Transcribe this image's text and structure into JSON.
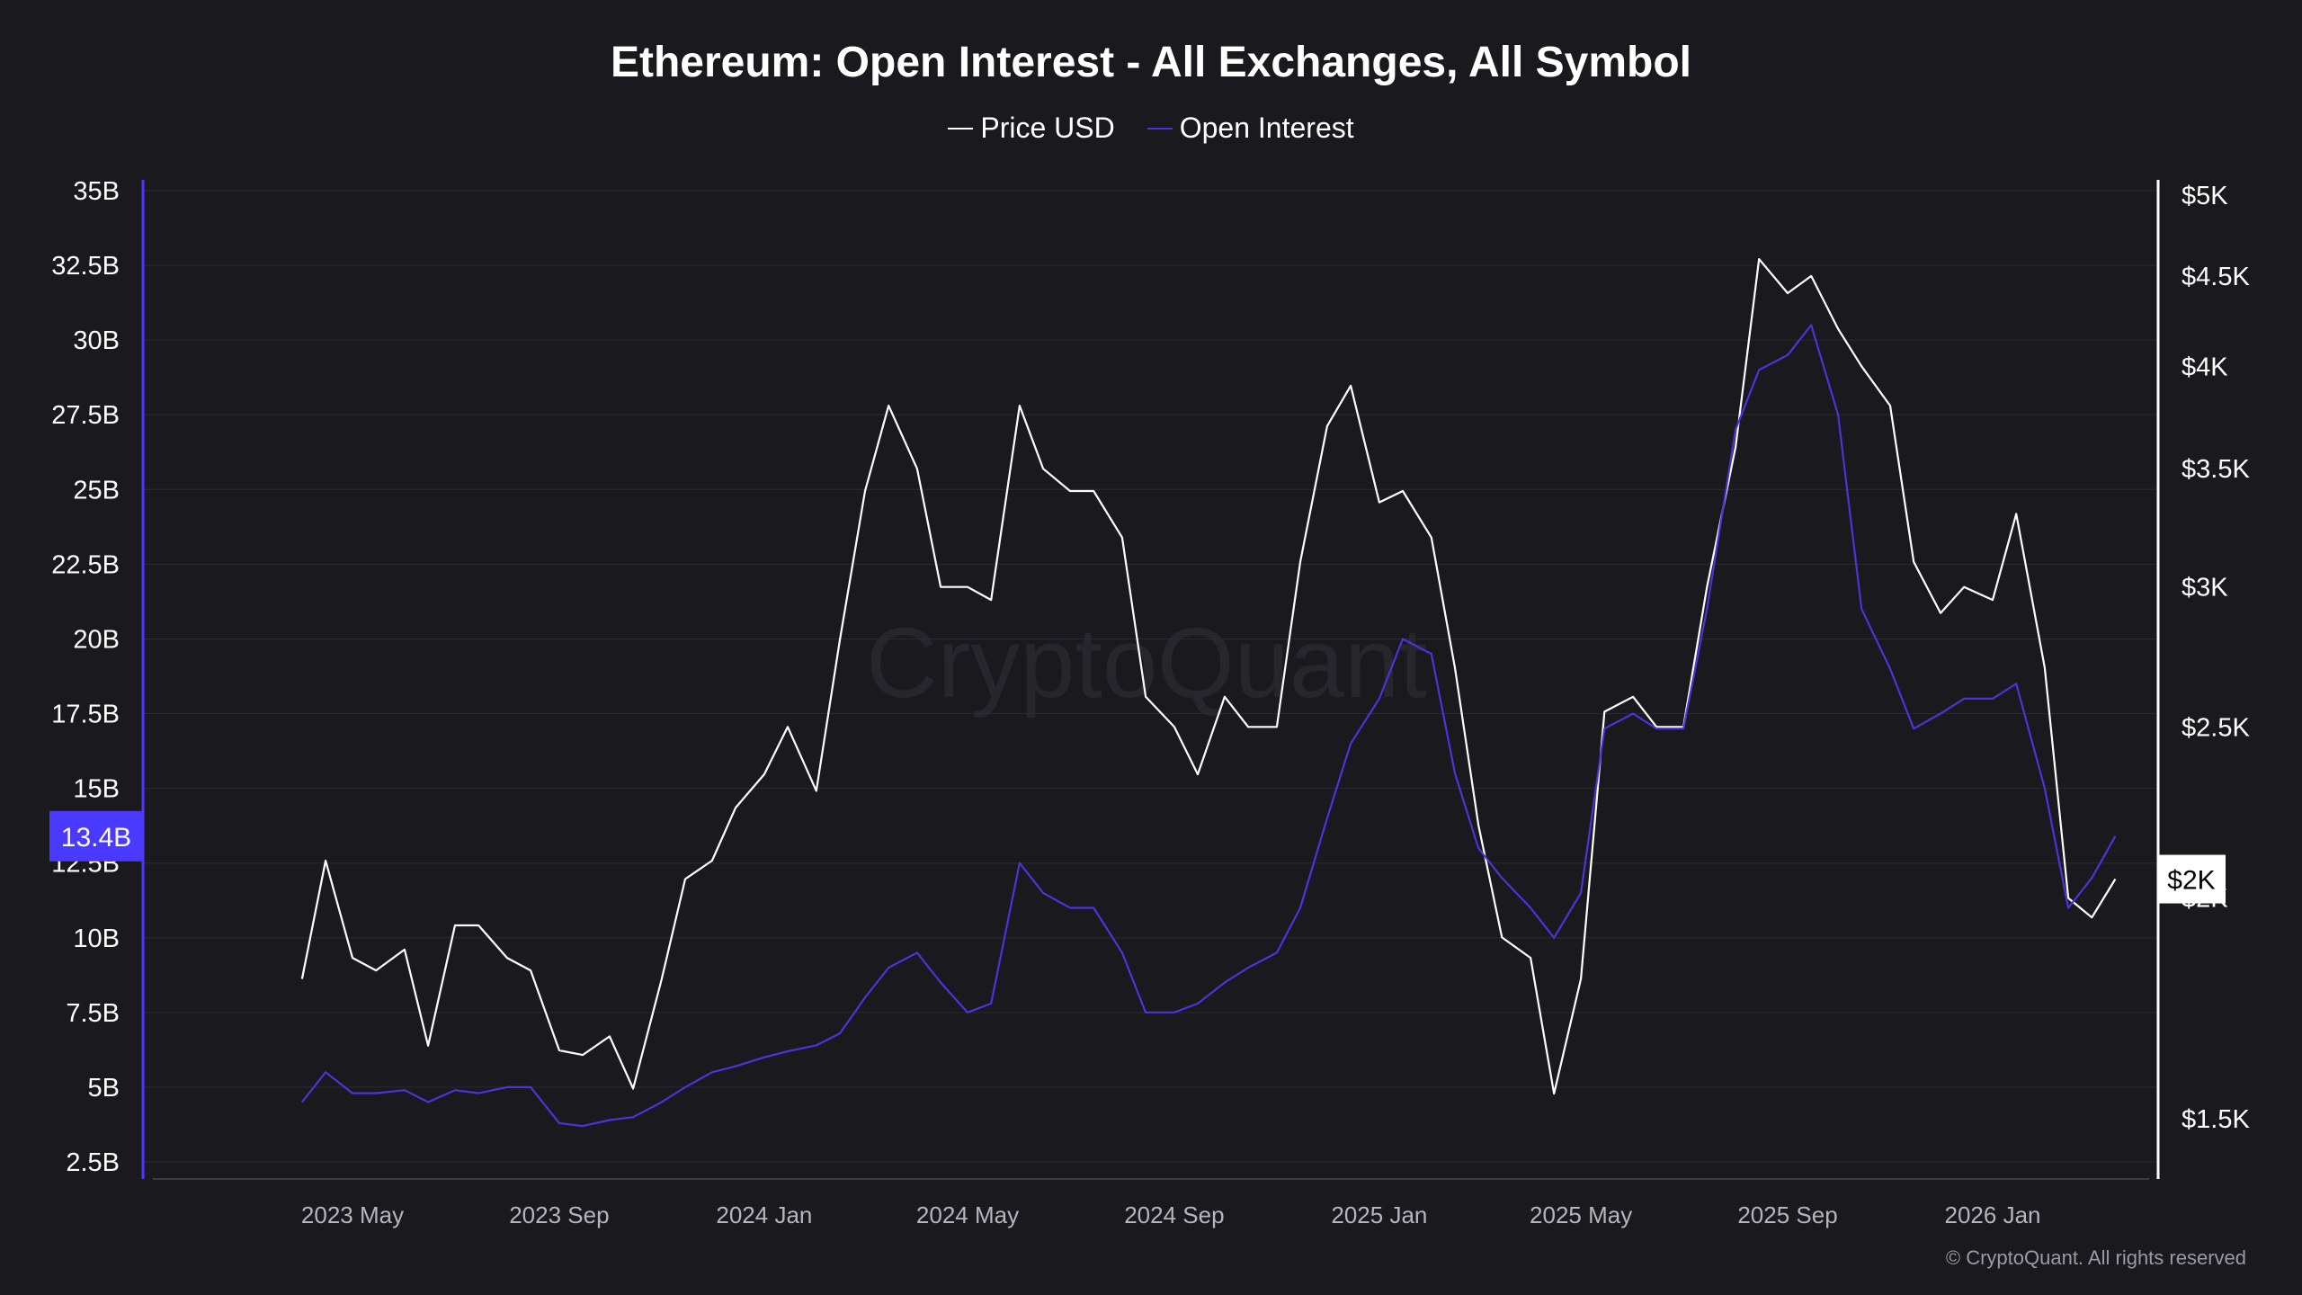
{
  "chart_data": {
    "type": "line",
    "title": "Ethereum: Open Interest - All Exchanges, All Symbol",
    "watermark": "CryptoQuant",
    "footer": "© CryptoQuant. All rights reserved",
    "legend_position": "top",
    "grid": true,
    "x_ticks": [
      {
        "date": "2023-05-01",
        "label": "2023 May"
      },
      {
        "date": "2023-09-01",
        "label": "2023 Sep"
      },
      {
        "date": "2024-01-01",
        "label": "2024 Jan"
      },
      {
        "date": "2024-05-01",
        "label": "2024 May"
      },
      {
        "date": "2024-09-01",
        "label": "2024 Sep"
      },
      {
        "date": "2025-01-01",
        "label": "2025 Jan"
      },
      {
        "date": "2025-05-01",
        "label": "2025 May"
      },
      {
        "date": "2025-09-01",
        "label": "2025 Sep"
      },
      {
        "date": "2026-01-01",
        "label": "2026 Jan"
      }
    ],
    "left_axis": {
      "ylim": [
        2.5,
        35
      ],
      "unit": "B",
      "ticks": [
        {
          "v": 35,
          "label": "35B"
        },
        {
          "v": 32.5,
          "label": "32.5B"
        },
        {
          "v": 30,
          "label": "30B"
        },
        {
          "v": 27.5,
          "label": "27.5B"
        },
        {
          "v": 25,
          "label": "25B"
        },
        {
          "v": 22.5,
          "label": "22.5B"
        },
        {
          "v": 20,
          "label": "20B"
        },
        {
          "v": 17.5,
          "label": "17.5B"
        },
        {
          "v": 15,
          "label": "15B"
        },
        {
          "v": 12.5,
          "label": "12.5B"
        },
        {
          "v": 10,
          "label": "10B"
        },
        {
          "v": 7.5,
          "label": "7.5B"
        },
        {
          "v": 5,
          "label": "5B"
        },
        {
          "v": 2.5,
          "label": "2.5B"
        }
      ],
      "current_label": "13.4B",
      "current_value": 13.4,
      "color": "#4a3aff"
    },
    "right_axis": {
      "scale": "log",
      "ylim": [
        1500,
        5000
      ],
      "ticks": [
        {
          "v": 5000,
          "label": "$5K"
        },
        {
          "v": 4500,
          "label": "$4.5K"
        },
        {
          "v": 4000,
          "label": "$4K"
        },
        {
          "v": 3500,
          "label": "$3.5K"
        },
        {
          "v": 3000,
          "label": "$3K"
        },
        {
          "v": 2500,
          "label": "$2.5K"
        },
        {
          "v": 2000,
          "label": "$2K"
        },
        {
          "v": 1500,
          "label": "$1.5K"
        }
      ],
      "current_label": "$2K",
      "current_value": 2050,
      "color": "#ffffff"
    },
    "x": [
      "2023-04-01",
      "2023-04-15",
      "2023-05-01",
      "2023-05-15",
      "2023-06-01",
      "2023-06-15",
      "2023-07-01",
      "2023-07-15",
      "2023-08-01",
      "2023-08-15",
      "2023-09-01",
      "2023-09-15",
      "2023-10-01",
      "2023-10-15",
      "2023-11-01",
      "2023-11-15",
      "2023-12-01",
      "2023-12-15",
      "2024-01-01",
      "2024-01-15",
      "2024-02-01",
      "2024-02-15",
      "2024-03-01",
      "2024-03-15",
      "2024-04-01",
      "2024-04-15",
      "2024-05-01",
      "2024-05-15",
      "2024-06-01",
      "2024-06-15",
      "2024-07-01",
      "2024-07-15",
      "2024-08-01",
      "2024-08-15",
      "2024-09-01",
      "2024-09-15",
      "2024-10-01",
      "2024-10-15",
      "2024-11-01",
      "2024-11-15",
      "2024-12-01",
      "2024-12-15",
      "2025-01-01",
      "2025-01-15",
      "2025-02-01",
      "2025-02-15",
      "2025-03-01",
      "2025-03-15",
      "2025-04-01",
      "2025-04-15",
      "2025-05-01",
      "2025-05-15",
      "2025-06-01",
      "2025-06-15",
      "2025-07-01",
      "2025-07-15",
      "2025-08-01",
      "2025-08-15",
      "2025-09-01",
      "2025-09-15",
      "2025-10-01",
      "2025-10-15",
      "2025-11-01",
      "2025-11-15",
      "2025-12-01",
      "2025-12-15",
      "2026-01-01",
      "2026-01-15",
      "2026-02-01",
      "2026-02-15",
      "2026-03-01",
      "2026-03-15"
    ],
    "series": [
      {
        "name": "Price USD",
        "axis": "right",
        "color": "#ffffff",
        "values": [
          1800,
          2100,
          1850,
          1820,
          1870,
          1650,
          1930,
          1930,
          1850,
          1820,
          1640,
          1630,
          1670,
          1560,
          1800,
          2050,
          2100,
          2250,
          2350,
          2500,
          2300,
          2800,
          3400,
          3800,
          3500,
          3000,
          3000,
          2950,
          3800,
          3500,
          3400,
          3400,
          3200,
          2600,
          2500,
          2350,
          2600,
          2500,
          2500,
          3100,
          3700,
          3900,
          3350,
          3400,
          3200,
          2700,
          2200,
          1900,
          1850,
          1550,
          1800,
          2550,
          2600,
          2500,
          2500,
          3000,
          3600,
          4600,
          4400,
          4500,
          4200,
          4000,
          3800,
          3100,
          2900,
          3000,
          2950,
          3300,
          2700,
          2000,
          1950,
          2050
        ]
      },
      {
        "name": "Open Interest",
        "axis": "left",
        "color": "#4a35d8",
        "values": [
          4.5,
          5.5,
          4.8,
          4.8,
          4.9,
          4.5,
          4.9,
          4.8,
          5.0,
          5.0,
          3.8,
          3.7,
          3.9,
          4.0,
          4.5,
          5.0,
          5.5,
          5.7,
          6.0,
          6.2,
          6.4,
          6.8,
          8.0,
          9.0,
          9.5,
          8.5,
          7.5,
          7.8,
          12.5,
          11.5,
          11.0,
          11.0,
          9.5,
          7.5,
          7.5,
          7.8,
          8.5,
          9.0,
          9.5,
          11.0,
          14.0,
          16.5,
          18.0,
          20.0,
          19.5,
          15.5,
          13.0,
          12.0,
          11.0,
          10.0,
          11.5,
          17.0,
          17.5,
          17.0,
          17.0,
          21.0,
          27.0,
          29.0,
          29.5,
          30.5,
          27.5,
          21.0,
          19.0,
          17.0,
          17.5,
          18.0,
          18.0,
          18.5,
          15.0,
          11.0,
          12.0,
          13.4
        ]
      }
    ]
  }
}
